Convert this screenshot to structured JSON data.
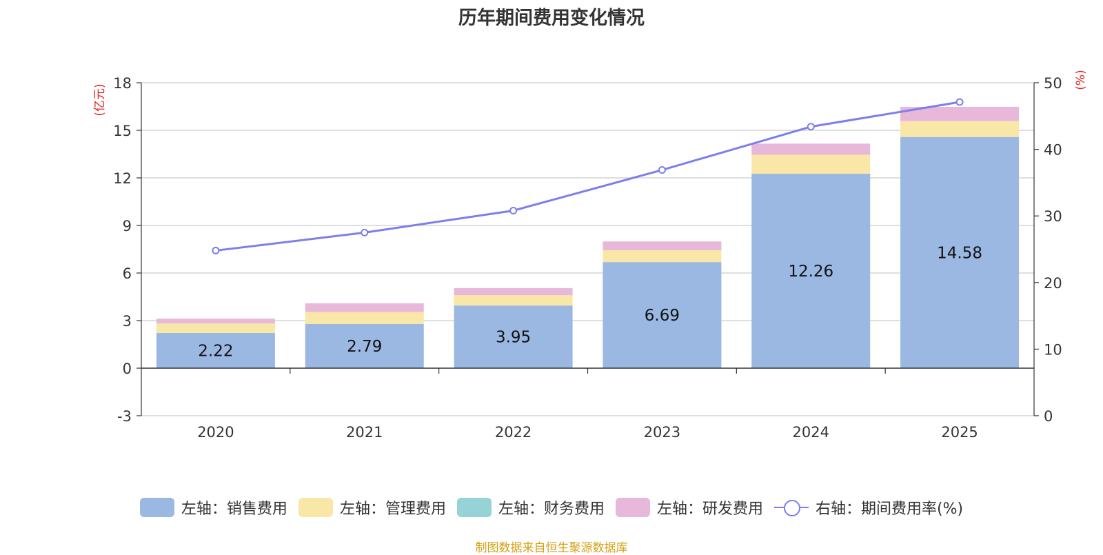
{
  "chart_data": {
    "type": "bar",
    "stacked": true,
    "title": "历年期间费用变化情况",
    "categories": [
      "2020",
      "2021",
      "2022",
      "2023",
      "2024",
      "2025"
    ],
    "left_axis": {
      "label": "(亿元)",
      "ticks": [
        -3,
        0,
        3,
        6,
        9,
        12,
        15,
        18
      ],
      "ylim": [
        -3,
        18
      ]
    },
    "right_axis": {
      "label": "(%)",
      "ticks": [
        0,
        10,
        20,
        30,
        40,
        50
      ],
      "ylim": [
        0,
        50
      ]
    },
    "series": [
      {
        "name": "左轴：销售费用",
        "axis": "left",
        "kind": "bar",
        "color": "#9bb8e3",
        "values": [
          2.22,
          2.79,
          3.95,
          6.69,
          12.26,
          14.58
        ],
        "labels": [
          "2.22",
          "2.79",
          "3.95",
          "6.69",
          "12.26",
          "14.58"
        ]
      },
      {
        "name": "左轴：管理费用",
        "axis": "left",
        "kind": "bar",
        "color": "#f9e7a8",
        "values": [
          0.6,
          0.75,
          0.65,
          0.75,
          1.2,
          1.0
        ]
      },
      {
        "name": "左轴：财务费用",
        "axis": "left",
        "kind": "bar",
        "color": "#96d3d6",
        "values": [
          0,
          0,
          0,
          0,
          0,
          0
        ]
      },
      {
        "name": "左轴：研发费用",
        "axis": "left",
        "kind": "bar",
        "color": "#e8b8da",
        "values": [
          0.3,
          0.55,
          0.45,
          0.55,
          0.7,
          0.9
        ]
      },
      {
        "name": "右轴：期间费用率(%)",
        "axis": "right",
        "kind": "line",
        "color": "#7b7fea",
        "values": [
          24.8,
          27.5,
          30.8,
          36.9,
          43.4,
          47.1
        ]
      }
    ],
    "legend_position": "bottom",
    "grid": true
  },
  "source": "制图数据来自恒生聚源数据库"
}
